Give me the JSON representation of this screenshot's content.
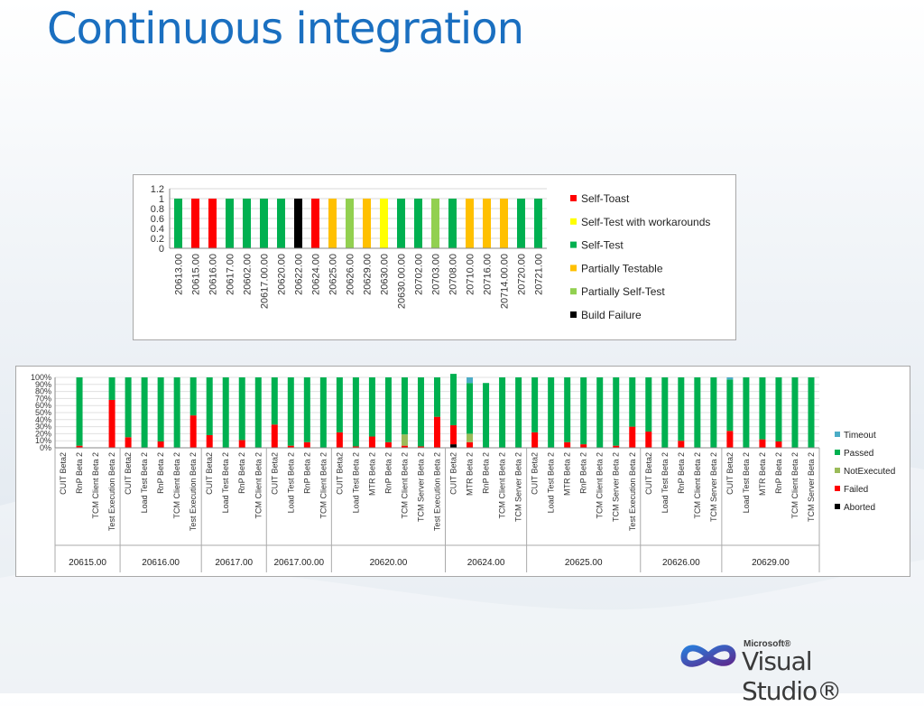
{
  "slide": {
    "title": "Continuous integration"
  },
  "logo": {
    "company": "Microsoft®",
    "product": "Visual Studio®"
  },
  "colors": {
    "title": "#1a6fc0",
    "self_toast": "#ff0000",
    "self_test_with_workarounds": "#ffff00",
    "self_test": "#00b050",
    "partially_testable": "#ffc000",
    "partially_self_test": "#92d050",
    "build_failure": "#000000",
    "timeout": "#4bacc6",
    "passed": "#00b050",
    "not_executed": "#9bbb59",
    "failed": "#ff0000",
    "aborted": "#000000"
  },
  "chart_data": [
    {
      "type": "bar",
      "categories": [
        "20613.00",
        "20615.00",
        "20616.00",
        "20617.00",
        "20602.00",
        "20617.00.00",
        "20620.00",
        "20622.00",
        "20624.00",
        "20625.00",
        "20626.00",
        "20629.00",
        "20630.00",
        "20630.00.00",
        "20702.00",
        "20703.00",
        "20708.00",
        "20710.00",
        "20716.00",
        "20714.00.00",
        "20720.00",
        "20721.00"
      ],
      "values": [
        1,
        1,
        1,
        1,
        1,
        1,
        1,
        1,
        1,
        1,
        1,
        1,
        1,
        1,
        1,
        1,
        1,
        1,
        1,
        1,
        1,
        1
      ],
      "status": [
        "self_test",
        "self_toast",
        "self_toast",
        "self_test",
        "self_test",
        "self_test",
        "self_test",
        "build_failure",
        "self_toast",
        "partially_testable",
        "partially_self_test",
        "partially_testable",
        "self_test_with_workarounds",
        "self_test",
        "self_test",
        "partially_self_test",
        "self_test",
        "partially_testable",
        "partially_testable",
        "partially_testable",
        "self_test",
        "self_test"
      ],
      "ylim": [
        0,
        1.2
      ],
      "yticks": [
        "1.2",
        "1",
        "0.8",
        "0.6",
        "0.4",
        "0.2",
        "0"
      ],
      "legend": [
        {
          "key": "self_toast",
          "label": "Self-Toast"
        },
        {
          "key": "self_test_with_workarounds",
          "label": "Self-Test with workarounds"
        },
        {
          "key": "self_test",
          "label": "Self-Test"
        },
        {
          "key": "partially_testable",
          "label": "Partially Testable"
        },
        {
          "key": "partially_self_test",
          "label": "Partially Self-Test"
        },
        {
          "key": "build_failure",
          "label": "Build Failure"
        }
      ],
      "legend_position": "right",
      "grid": true
    },
    {
      "type": "bar",
      "stacked": true,
      "percent": true,
      "yticks": [
        "100%",
        "90%",
        "80%",
        "70%",
        "60%",
        "50%",
        "40%",
        "30%",
        "20%",
        "10%",
        "0%"
      ],
      "ylim": [
        0,
        100
      ],
      "groups": [
        {
          "label": "20615.00",
          "categories": [
            "CUIT Beta2",
            "RnP Beta 2",
            "TCM Client Beta 2",
            "Test Execution Beta 2"
          ]
        },
        {
          "label": "20616.00",
          "categories": [
            "CUIT Beta2",
            "Load Test Beta 2",
            "RnP Beta 2",
            "TCM Client Beta 2",
            "Test Execution Beta 2"
          ]
        },
        {
          "label": "20617.00",
          "categories": [
            "CUIT Beta2",
            "Load Test Beta 2",
            "RnP Beta 2",
            "TCM Client Beta 2"
          ]
        },
        {
          "label": "20617.00.00",
          "categories": [
            "CUIT Beta2",
            "Load Test Beta 2",
            "RnP Beta 2",
            "TCM Client Beta 2"
          ]
        },
        {
          "label": "20620.00",
          "categories": [
            "CUIT Beta2",
            "Load Test Beta 2",
            "MTR Beta 2",
            "RnP Beta 2",
            "TCM Client Beta 2",
            "TCM Server Beta 2",
            "Test Execution Beta 2"
          ]
        },
        {
          "label": "20624.00",
          "categories": [
            "CUIT Beta2",
            "MTR Beta 2",
            "RnP Beta 2",
            "TCM Client Beta 2",
            "TCM Server Beta 2"
          ]
        },
        {
          "label": "20625.00",
          "categories": [
            "CUIT Beta2",
            "Load Test Beta 2",
            "MTR Beta 2",
            "RnP Beta 2",
            "TCM Client Beta 2",
            "TCM Server Beta 2",
            "Test Execution Beta 2"
          ]
        },
        {
          "label": "20626.00",
          "categories": [
            "CUIT Beta2",
            "Load Test Beta 2",
            "RnP Beta 2",
            "TCM Client Beta 2",
            "TCM Server Beta 2"
          ]
        },
        {
          "label": "20629.00",
          "categories": [
            "CUIT Beta2",
            "Load Test Beta 2",
            "MTR Beta 2",
            "RnP Beta 2",
            "TCM Client Beta 2",
            "TCM Server Beta 2"
          ]
        }
      ],
      "series": [
        {
          "name": "Aborted",
          "key": "aborted",
          "values": [
            0,
            0,
            0,
            0,
            0,
            0,
            0,
            0,
            0,
            0,
            0,
            0,
            0,
            0,
            0,
            0,
            0,
            0,
            0,
            0,
            0,
            0,
            0,
            0,
            5,
            0,
            0,
            0,
            0,
            0,
            0,
            0,
            0,
            0,
            0,
            0,
            0,
            0,
            0,
            0,
            0,
            0,
            0,
            0,
            0,
            0,
            0
          ]
        },
        {
          "name": "Failed",
          "key": "failed",
          "values": [
            0,
            3,
            0,
            68,
            15,
            0,
            9,
            0,
            46,
            18,
            0,
            11,
            0,
            33,
            3,
            8,
            0,
            22,
            2,
            16,
            8,
            3,
            2,
            44,
            27,
            8,
            0,
            0,
            0,
            22,
            0,
            8,
            5,
            0,
            3,
            30,
            23,
            0,
            10,
            0,
            0,
            24,
            0,
            12,
            9,
            0,
            0
          ]
        },
        {
          "name": "NotExecuted",
          "key": "not_executed",
          "values": [
            0,
            0,
            0,
            0,
            0,
            0,
            0,
            0,
            0,
            0,
            0,
            0,
            0,
            0,
            0,
            0,
            0,
            0,
            0,
            0,
            0,
            16,
            0,
            0,
            0,
            12,
            0,
            0,
            0,
            0,
            0,
            0,
            0,
            0,
            0,
            0,
            0,
            0,
            0,
            0,
            0,
            0,
            0,
            0,
            0,
            0,
            0
          ]
        },
        {
          "name": "Passed",
          "key": "passed",
          "values": [
            0,
            97,
            0,
            32,
            85,
            100,
            91,
            100,
            54,
            82,
            100,
            89,
            100,
            67,
            97,
            92,
            100,
            78,
            98,
            84,
            92,
            81,
            98,
            56,
            73,
            72,
            92,
            100,
            100,
            78,
            100,
            92,
            95,
            100,
            97,
            70,
            77,
            100,
            90,
            100,
            100,
            73,
            100,
            88,
            91,
            100,
            100
          ]
        },
        {
          "name": "Timeout",
          "key": "timeout",
          "values": [
            0,
            0,
            0,
            0,
            0,
            0,
            0,
            0,
            0,
            0,
            0,
            0,
            0,
            0,
            0,
            0,
            0,
            0,
            0,
            0,
            0,
            0,
            0,
            0,
            0,
            8,
            0,
            0,
            0,
            0,
            0,
            0,
            0,
            0,
            0,
            0,
            0,
            0,
            0,
            0,
            0,
            3,
            0,
            0,
            0,
            0,
            0
          ]
        }
      ],
      "legend": [
        {
          "key": "timeout",
          "label": "Timeout"
        },
        {
          "key": "passed",
          "label": "Passed"
        },
        {
          "key": "not_executed",
          "label": "NotExecuted"
        },
        {
          "key": "failed",
          "label": "Failed"
        },
        {
          "key": "aborted",
          "label": "Aborted"
        }
      ],
      "legend_position": "right",
      "grid": true
    }
  ]
}
